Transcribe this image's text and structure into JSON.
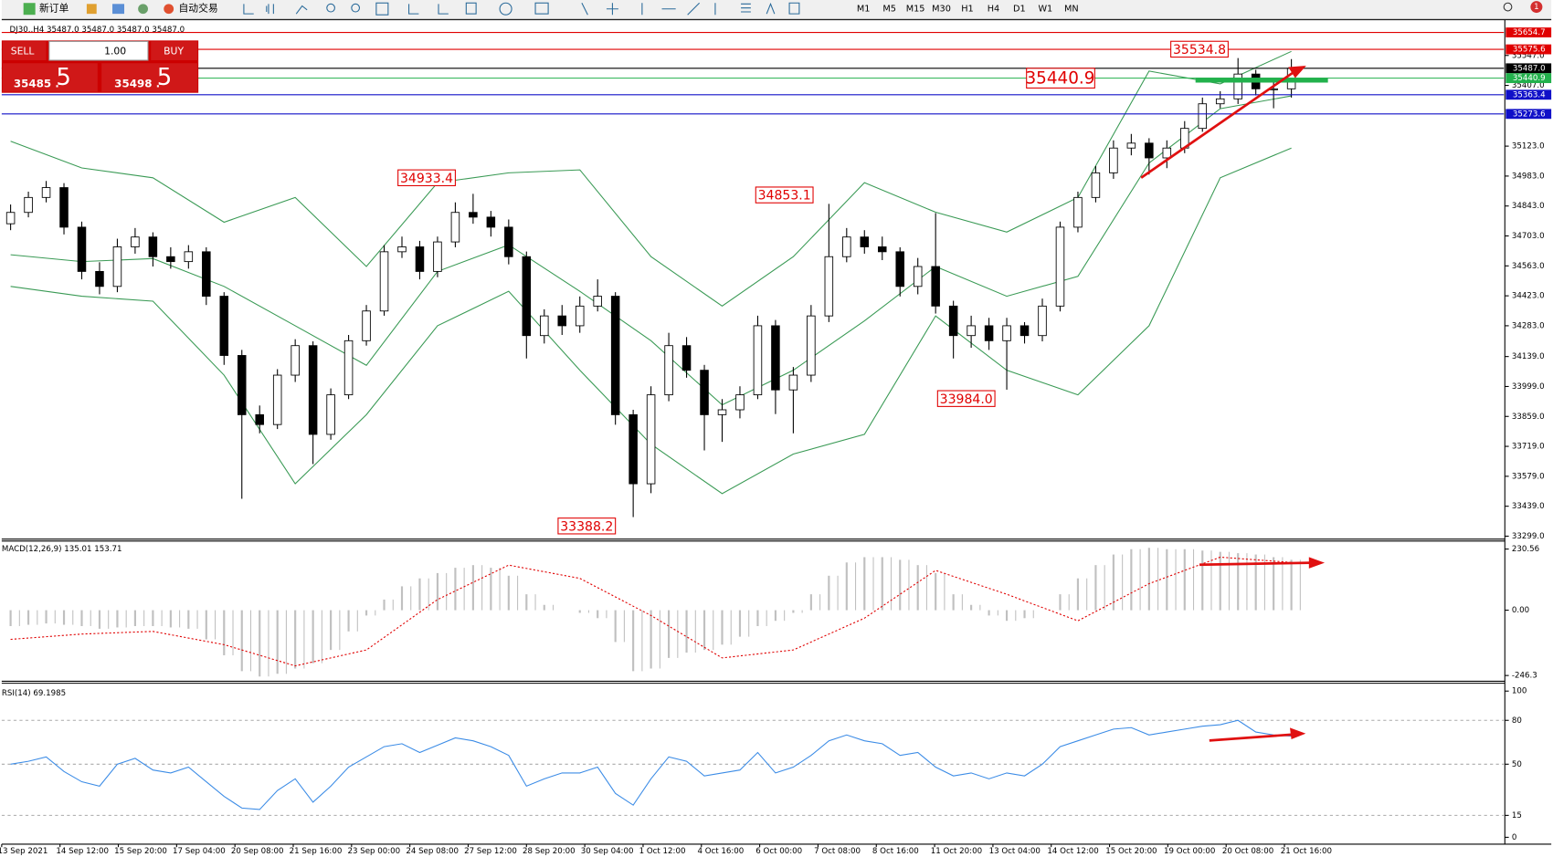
{
  "toolbar": {
    "new_order": "新订单",
    "auto_trading": "自动交易",
    "timeframes": [
      "M1",
      "M5",
      "M15",
      "M30",
      "H1",
      "H4",
      "D1",
      "W1",
      "MN"
    ],
    "notifications": "1"
  },
  "trade_panel": {
    "sell": "SELL",
    "buy": "BUY",
    "lot": "1.00",
    "sell_small": "35485 .",
    "sell_big": "5",
    "buy_small": "35498 .",
    "buy_big": "5"
  },
  "time_axis": {
    "labels": [
      "13 Sep 2021",
      "14 Sep 12:00",
      "15 Sep 20:00",
      "17 Sep 04:00",
      "20 Sep 08:00",
      "21 Sep 16:00",
      "23 Sep 00:00",
      "24 Sep 08:00",
      "27 Sep 12:00",
      "28 Sep 20:00",
      "30 Sep 04:00",
      "1 Oct 12:00",
      "4 Oct 16:00",
      "6 Oct 00:00",
      "7 Oct 08:00",
      "8 Oct 16:00",
      "11 Oct 20:00",
      "13 Oct 04:00",
      "14 Oct 12:00",
      "15 Oct 20:00",
      "19 Oct 00:00",
      "20 Oct 08:00",
      "21 Oct 16:00"
    ]
  },
  "chart_data": [
    {
      "type": "candlestick",
      "title": "DJ30.,H4  35487.0 35487.0 35487.0 35487.0",
      "open": [
        34760,
        34813,
        34883,
        34929,
        34744,
        34537,
        34467,
        34652,
        34698,
        34606,
        34583,
        34629,
        34421,
        34144,
        33867,
        33821,
        34052,
        34190,
        33775,
        33960,
        34213,
        34352,
        34629,
        34652,
        34537,
        34675,
        34813,
        34791,
        34744,
        34606,
        34237,
        34329,
        34283,
        34375,
        34421,
        33867,
        33544,
        33960,
        34190,
        34075,
        33867,
        33890,
        33960,
        34283,
        33983,
        34052,
        34329,
        34606,
        34698,
        34652,
        34629,
        34467,
        34560,
        34375,
        34237,
        34283,
        34213,
        34283,
        34237,
        34375,
        34744,
        34883,
        34998,
        35114,
        35137,
        35068,
        35114,
        35206,
        35321,
        35344,
        35460,
        35391,
        35391
      ],
      "high": [
        34850,
        34910,
        34960,
        34950,
        34770,
        34580,
        34690,
        34740,
        34720,
        34650,
        34660,
        34650,
        34440,
        34170,
        33910,
        34080,
        34220,
        34210,
        33990,
        34240,
        34380,
        34660,
        34700,
        34680,
        34700,
        34860,
        34900,
        34820,
        34780,
        34630,
        34360,
        34380,
        34420,
        34500,
        34440,
        33890,
        34000,
        34250,
        34230,
        34100,
        33940,
        34000,
        34330,
        34310,
        34090,
        34380,
        34853.1,
        34740,
        34730,
        34700,
        34650,
        34600,
        34810,
        34400,
        34330,
        34320,
        34320,
        34300,
        34410,
        34770,
        34910,
        35030,
        35150,
        35180,
        35160,
        35150,
        35240,
        35350,
        35380,
        35534.8,
        35480,
        35430,
        35530
      ],
      "low": [
        34730,
        34790,
        34860,
        34710,
        34500,
        34430,
        34440,
        34620,
        34560,
        34550,
        34550,
        34380,
        34100,
        33474,
        33780,
        33800,
        34020,
        33636,
        33750,
        33940,
        34190,
        34330,
        34600,
        34500,
        34510,
        34650,
        34760,
        34700,
        34570,
        34130,
        34200,
        34240,
        34250,
        34350,
        33820,
        33388.2,
        33500,
        33930,
        34040,
        33700,
        33740,
        33850,
        33940,
        33870,
        33780,
        34020,
        34300,
        34580,
        34620,
        34590,
        34420,
        34430,
        34340,
        34130,
        34180,
        34170,
        33984,
        34200,
        34210,
        34350,
        34720,
        34860,
        34970,
        35080,
        34990,
        35020,
        35090,
        35190,
        35300,
        35320,
        35360,
        35300,
        35350
      ],
      "close": [
        34813,
        34883,
        34929,
        34744,
        34537,
        34467,
        34652,
        34698,
        34606,
        34583,
        34629,
        34421,
        34144,
        33867,
        33821,
        34052,
        34190,
        33775,
        33960,
        34213,
        34352,
        34629,
        34652,
        34537,
        34675,
        34813,
        34791,
        34744,
        34606,
        34237,
        34329,
        34283,
        34375,
        34421,
        33867,
        33544,
        33960,
        34190,
        34075,
        33867,
        33890,
        33960,
        34283,
        33983,
        34052,
        34329,
        34606,
        34698,
        34652,
        34629,
        34467,
        34560,
        34375,
        34237,
        34283,
        34213,
        34283,
        34237,
        34375,
        34744,
        34883,
        34998,
        35114,
        35137,
        35068,
        35114,
        35206,
        35321,
        35344,
        35460,
        35391,
        35391,
        35487
      ],
      "bands": {
        "color": "#3a9a55",
        "upper": [
          35146,
          35021,
          34975,
          34767,
          34883,
          34560,
          34952,
          34998,
          35012,
          34606,
          34375,
          34606,
          34952,
          34814,
          34721,
          34883,
          35474,
          35414,
          35566
        ],
        "middle": [
          34615,
          34583,
          34597,
          34467,
          34283,
          34098,
          34537,
          34661,
          34444,
          34213,
          33913,
          34075,
          34306,
          34560,
          34421,
          34514,
          35044,
          35298,
          35358
        ],
        "lower": [
          34467,
          34421,
          34398,
          34052,
          33544,
          33867,
          34283,
          34444,
          34075,
          33729,
          33498,
          33683,
          33775,
          34329,
          34075,
          33960,
          34283,
          34975,
          35114
        ]
      },
      "annotations": [
        34933.4,
        34853.1,
        33388.2,
        {
          "value": 33984,
          "label": "33984.0"
        },
        35534.8
      ],
      "levels": [
        {
          "value": 35654.7,
          "color": "#e00000"
        },
        {
          "value": 35575.6,
          "color": "#e00000"
        },
        {
          "value": 35487,
          "label": "35487.0",
          "color": "#000000"
        },
        {
          "value": 35440.9,
          "color": "#22b14c"
        },
        {
          "value": 35363.4,
          "color": "#1010c8"
        },
        {
          "value": 35273.6,
          "color": "#1010c8"
        }
      ],
      "ylim": [
        33290,
        35714
      ],
      "yticks": [
        {
          "value": 35547,
          "label": "35547.0"
        },
        {
          "value": 35407,
          "label": "35407.0"
        },
        {
          "value": 35123,
          "label": "35123.0"
        },
        {
          "value": 34983,
          "label": "34983.0"
        },
        {
          "value": 34843,
          "label": "34843.0"
        },
        {
          "value": 34703,
          "label": "34703.0"
        },
        {
          "value": 34563,
          "label": "34563.0"
        },
        {
          "value": 34423,
          "label": "34423.0"
        },
        {
          "value": 34283,
          "label": "34283.0"
        },
        {
          "value": 34139,
          "label": "34139.0"
        },
        {
          "value": 33999,
          "label": "33999.0"
        },
        {
          "value": 33859,
          "label": "33859.0"
        },
        {
          "value": 33719,
          "label": "33719.0"
        },
        {
          "value": 33579,
          "label": "33579.0"
        },
        {
          "value": 33439,
          "label": "33439.0"
        },
        {
          "value": 33299,
          "label": "33299.0"
        }
      ]
    },
    {
      "type": "macd",
      "title": "MACD(12,26,9) 135.01 153.71",
      "values": [
        -60,
        -55,
        -50,
        -55,
        -60,
        -70,
        -65,
        -60,
        -60,
        -65,
        -70,
        -110,
        -170,
        -230,
        -250,
        -240,
        -220,
        -200,
        -150,
        -80,
        -20,
        40,
        90,
        120,
        140,
        160,
        170,
        160,
        130,
        60,
        20,
        0,
        -10,
        -30,
        -120,
        -230,
        -220,
        -180,
        -160,
        -150,
        -130,
        -100,
        -60,
        -40,
        -10,
        60,
        130,
        180,
        200,
        200,
        190,
        170,
        140,
        60,
        20,
        -20,
        -40,
        -30,
        0,
        60,
        120,
        170,
        210,
        230,
        235,
        230,
        230,
        225,
        220,
        215,
        210,
        200,
        190
      ],
      "color": "#c0c0c0",
      "signal": [
        -110,
        -90,
        -80,
        -130,
        -210,
        -150,
        40,
        170,
        120,
        -20,
        -180,
        -150,
        -30,
        150,
        60,
        -40,
        100,
        200,
        180
      ],
      "signal_color": "#e00000",
      "ylim": [
        -268,
        257
      ],
      "yticks": [
        230.56,
        {
          "value": 0,
          "label": "0.00"
        },
        -246.3
      ]
    },
    {
      "type": "line",
      "title": "RSI(14) 69.1985",
      "values": [
        50,
        52,
        55,
        45,
        38,
        35,
        50,
        54,
        46,
        44,
        48,
        38,
        28,
        20,
        19,
        32,
        40,
        24,
        35,
        48,
        55,
        62,
        64,
        58,
        63,
        68,
        66,
        62,
        56,
        35,
        40,
        44,
        44,
        48,
        30,
        22,
        40,
        55,
        52,
        42,
        44,
        46,
        58,
        44,
        48,
        56,
        66,
        70,
        66,
        64,
        56,
        58,
        48,
        42,
        44,
        40,
        44,
        42,
        50,
        62,
        66,
        70,
        74,
        75,
        70,
        72,
        74,
        76,
        77,
        80,
        72,
        70,
        69.1985
      ],
      "color": "#3c8ce6",
      "levels": [
        80,
        50,
        15
      ],
      "ylim": [
        -4.7,
        104.7
      ],
      "yticks": [
        100,
        80,
        50,
        15,
        0
      ]
    }
  ]
}
